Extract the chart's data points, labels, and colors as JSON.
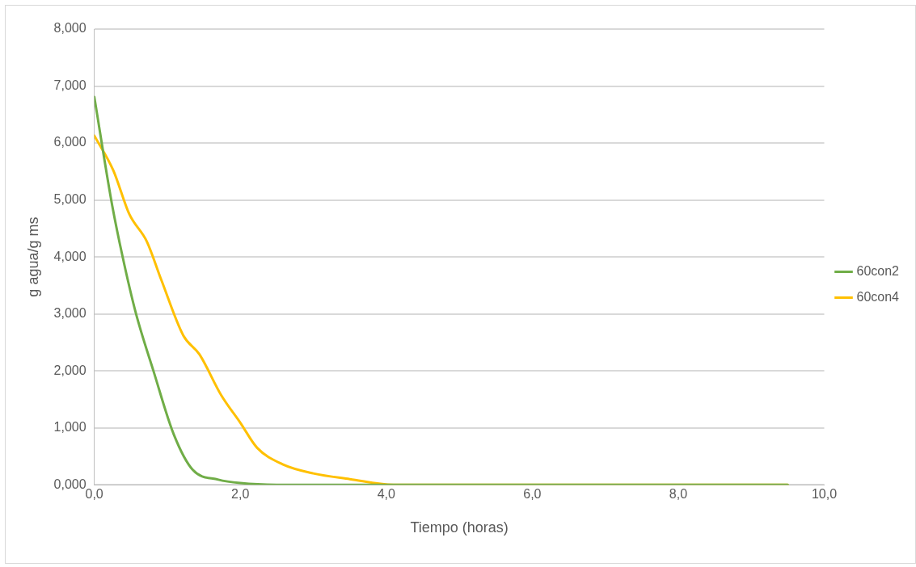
{
  "chart_data": {
    "type": "line",
    "xlabel": "Tiempo (horas)",
    "ylabel": "g agua/g ms",
    "xlim": [
      0,
      10
    ],
    "xticks": [
      {
        "value": 0,
        "label": "0,0"
      },
      {
        "value": 2,
        "label": "2,0"
      },
      {
        "value": 4,
        "label": "4,0"
      },
      {
        "value": 6,
        "label": "6,0"
      },
      {
        "value": 8,
        "label": "8,0"
      },
      {
        "value": 10,
        "label": "10,0"
      }
    ],
    "ylim": [
      0,
      8
    ],
    "yticks": [
      {
        "value": 0,
        "label": "0,000"
      },
      {
        "value": 1,
        "label": "1,000"
      },
      {
        "value": 2,
        "label": "2,000"
      },
      {
        "value": 3,
        "label": "3,000"
      },
      {
        "value": 4,
        "label": "4,000"
      },
      {
        "value": 5,
        "label": "5,000"
      },
      {
        "value": 6,
        "label": "6,000"
      },
      {
        "value": 7,
        "label": "7,000"
      },
      {
        "value": 8,
        "label": "8,000"
      }
    ],
    "grid": "y",
    "legend": "right",
    "marker": "none",
    "line_style": "solid",
    "series": [
      {
        "name": "60con2",
        "color": "#70ad47",
        "x": [
          0,
          0.24,
          0.39,
          0.57,
          0.81,
          1.09,
          1.35,
          1.7,
          2.0,
          2.5,
          4.0,
          9.5
        ],
        "values": [
          6.81,
          4.94,
          3.99,
          3.01,
          2.0,
          0.88,
          0.26,
          0.09,
          0.03,
          0.0,
          0.0,
          0.0
        ]
      },
      {
        "name": "60con4",
        "color": "#ffc000",
        "x": [
          0,
          0.26,
          0.48,
          0.72,
          0.92,
          1.22,
          1.44,
          1.74,
          2.0,
          2.23,
          2.58,
          3.0,
          3.5,
          4.1,
          9.5
        ],
        "values": [
          6.13,
          5.52,
          4.75,
          4.27,
          3.59,
          2.62,
          2.29,
          1.57,
          1.09,
          0.65,
          0.36,
          0.2,
          0.1,
          0.0,
          0.0
        ]
      }
    ]
  }
}
